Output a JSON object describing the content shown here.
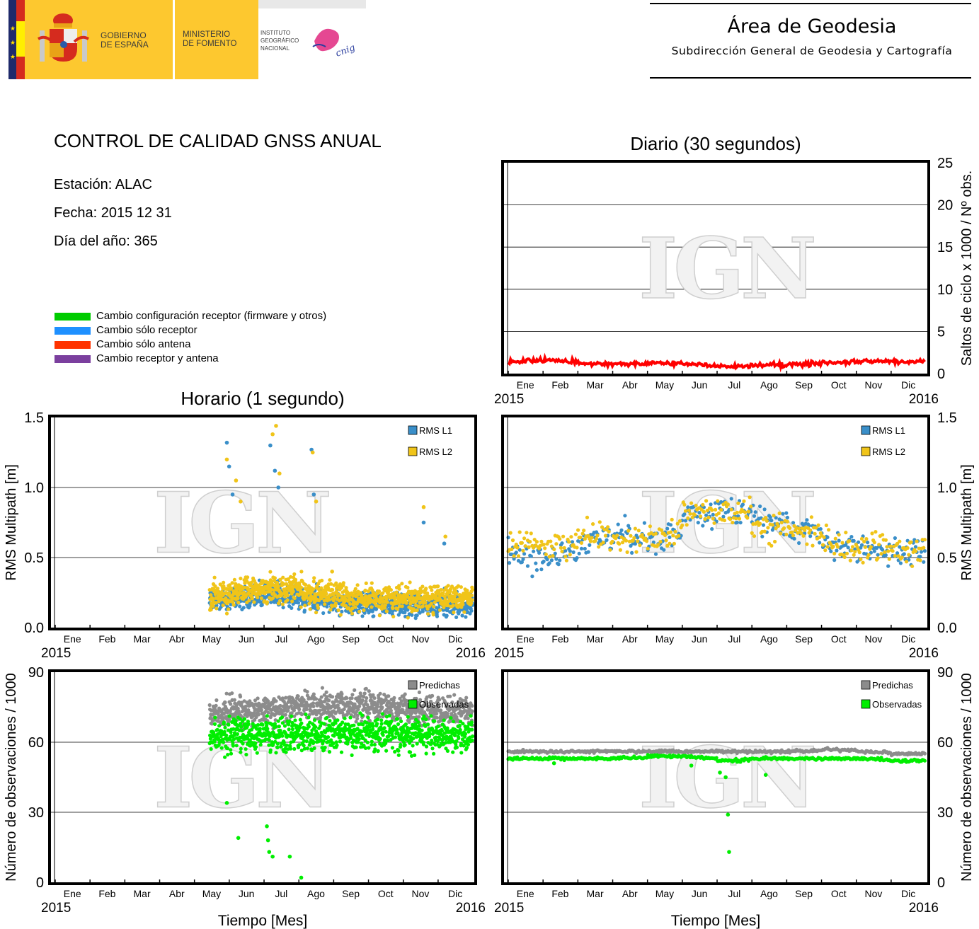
{
  "header": {
    "logo_gobierno": "GOBIERNO DE ESPAÑA",
    "logo_ministerio": "MINISTERIO DE FOMENTO",
    "logo_instituto": "INSTITUTO GEOGRÁFICO NACIONAL",
    "logo_cnig": "cnig",
    "area_title": "Área de Geodesia",
    "area_subtitle": "Subdirección General de Geodesia y Cartografía"
  },
  "report": {
    "title": "CONTROL DE CALIDAD GNSS ANUAL",
    "station": "Estación: ALAC",
    "date": "Fecha: 2015 12 31",
    "doy": "Día del año: 365"
  },
  "legend": [
    {
      "label": "Cambio configuración receptor (firmware y otros)",
      "color": "#00cc00"
    },
    {
      "label": "Cambio sólo receptor",
      "color": "#1e90ff"
    },
    {
      "label": "Cambio sólo antena",
      "color": "#ff3300"
    },
    {
      "label": "Cambio receptor y antena",
      "color": "#7b3f9e"
    }
  ],
  "titles": {
    "daily": "Diario (30 segundos)",
    "hourly": "Horario (1 segundo)",
    "xlabel_left": "Tiempo [Mes]",
    "xlabel_right": "Tiempo [Mes]"
  },
  "watermark": "IGN",
  "chart_data": [
    {
      "id": "daily-cycle-slips",
      "type": "line",
      "title": "Diario (30 segundos)",
      "ylabel": "Saltos de ciclo x 1000 / Nº obs.",
      "ylim": [
        0,
        25
      ],
      "yticks": [
        "0",
        "5",
        "10",
        "15",
        "20",
        "25"
      ],
      "ytick_values": [
        0,
        5,
        10,
        15,
        20,
        25
      ],
      "x_tick_labels": [
        "Ene",
        "Feb",
        "Mar",
        "Abr",
        "May",
        "Jun",
        "Jul",
        "Ago",
        "Sep",
        "Oct",
        "Nov",
        "Dic"
      ],
      "x_start": "2015",
      "x_end": "2016",
      "grid": true,
      "series": [
        {
          "name": "Saltos de ciclo",
          "color": "#ff0000",
          "start_day": 0,
          "monthly_mean": [
            1.5,
            1.6,
            1.2,
            1.1,
            1.3,
            1.1,
            0.8,
            1.0,
            1.1,
            1.3,
            1.5,
            1.4
          ],
          "spread": 0.25
        }
      ]
    },
    {
      "id": "hourly-rms",
      "type": "scatter",
      "ylabel": "RMS Multipath [m]",
      "ylim": [
        0,
        1.5
      ],
      "yticks": [
        "0.0",
        "0.5",
        "1.0",
        "1.5"
      ],
      "ytick_values": [
        0,
        0.5,
        1.0,
        1.5
      ],
      "x_tick_labels": [
        "Ene",
        "Feb",
        "Mar",
        "Abr",
        "May",
        "Jun",
        "Jul",
        "Ago",
        "Sep",
        "Oct",
        "Nov",
        "Dic"
      ],
      "x_start": "2015",
      "x_end": "2016",
      "legend_position": "top-right",
      "grid": true,
      "series": [
        {
          "name": "RMS L1",
          "color": "#3a8fc9",
          "start_day": 135,
          "monthly_mean": [
            null,
            null,
            null,
            null,
            0.18,
            0.22,
            0.25,
            0.2,
            0.18,
            0.17,
            0.16,
            0.17
          ],
          "spread": 0.08,
          "outliers": [
            [
              150,
              1.32
            ],
            [
              152,
              1.15
            ],
            [
              155,
              0.95
            ],
            [
              188,
              1.3
            ],
            [
              192,
              1.12
            ],
            [
              195,
              1.0
            ],
            [
              224,
              1.27
            ],
            [
              226,
              0.95
            ],
            [
              322,
              0.75
            ],
            [
              340,
              0.6
            ]
          ]
        },
        {
          "name": "RMS L2",
          "color": "#f0c419",
          "start_day": 135,
          "monthly_mean": [
            null,
            null,
            null,
            null,
            0.22,
            0.26,
            0.3,
            0.25,
            0.22,
            0.21,
            0.2,
            0.21
          ],
          "spread": 0.1,
          "outliers": [
            [
              150,
              1.2
            ],
            [
              158,
              1.05
            ],
            [
              162,
              0.9
            ],
            [
              190,
              1.38
            ],
            [
              193,
              1.44
            ],
            [
              196,
              1.1
            ],
            [
              225,
              1.25
            ],
            [
              228,
              0.9
            ],
            [
              242,
              0.4
            ],
            [
              322,
              0.86
            ],
            [
              341,
              0.65
            ]
          ]
        }
      ]
    },
    {
      "id": "daily-rms",
      "type": "scatter",
      "ylabel": "RMS Multipath [m]",
      "ylim": [
        0,
        1.5
      ],
      "yticks": [
        "0.0",
        "0.5",
        "1.0",
        "1.5"
      ],
      "ytick_values": [
        0,
        0.5,
        1.0,
        1.5
      ],
      "x_tick_labels": [
        "Ene",
        "Feb",
        "Mar",
        "Abr",
        "May",
        "Jun",
        "Jul",
        "Ago",
        "Sep",
        "Oct",
        "Nov",
        "Dic"
      ],
      "x_start": "2015",
      "x_end": "2016",
      "legend_position": "top-right",
      "grid": true,
      "series": [
        {
          "name": "RMS L1",
          "color": "#3a8fc9",
          "start_day": 0,
          "monthly_mean": [
            0.52,
            0.47,
            0.6,
            0.68,
            0.6,
            0.78,
            0.85,
            0.78,
            0.72,
            0.62,
            0.55,
            0.56
          ],
          "spread": 0.1
        },
        {
          "name": "RMS L2",
          "color": "#f0c419",
          "start_day": 0,
          "monthly_mean": [
            0.6,
            0.56,
            0.66,
            0.65,
            0.6,
            0.82,
            0.88,
            0.72,
            0.7,
            0.62,
            0.55,
            0.55
          ],
          "spread": 0.1
        }
      ]
    },
    {
      "id": "hourly-observations",
      "type": "scatter",
      "ylabel": "Número de observaciones / 1000",
      "ylim": [
        0,
        90
      ],
      "yticks": [
        "0",
        "30",
        "60",
        "90"
      ],
      "ytick_values": [
        0,
        30,
        60,
        90
      ],
      "x_tick_labels": [
        "Ene",
        "Feb",
        "Mar",
        "Abr",
        "May",
        "Jun",
        "Jul",
        "Ago",
        "Sep",
        "Oct",
        "Nov",
        "Dic"
      ],
      "x_start": "2015",
      "x_end": "2016",
      "legend_position": "top-right",
      "grid": true,
      "series": [
        {
          "name": "Predichas",
          "color": "#8c8c8c",
          "start_day": 135,
          "monthly_mean": [
            null,
            null,
            null,
            null,
            72,
            73,
            74,
            75,
            76,
            75,
            74,
            73
          ],
          "spread": 6
        },
        {
          "name": "Observadas",
          "color": "#00ee00",
          "start_day": 135,
          "monthly_mean": [
            null,
            null,
            null,
            null,
            62,
            63,
            63,
            63,
            64,
            64,
            63,
            63
          ],
          "spread": 7,
          "outliers": [
            [
              150,
              34
            ],
            [
              160,
              19
            ],
            [
              185,
              24
            ],
            [
              186,
              18
            ],
            [
              187,
              13
            ],
            [
              190,
              11
            ],
            [
              205,
              11
            ],
            [
              215,
              2
            ]
          ]
        }
      ]
    },
    {
      "id": "daily-observations",
      "type": "scatter",
      "ylabel": "Número de observaciones / 1000",
      "ylim": [
        0,
        90
      ],
      "yticks": [
        "0",
        "30",
        "60",
        "90"
      ],
      "ytick_values": [
        0,
        30,
        60,
        90
      ],
      "x_tick_labels": [
        "Ene",
        "Feb",
        "Mar",
        "Abr",
        "May",
        "Jun",
        "Jul",
        "Ago",
        "Sep",
        "Oct",
        "Nov",
        "Dic"
      ],
      "x_start": "2015",
      "x_end": "2016",
      "legend_position": "top-right",
      "grid": true,
      "series": [
        {
          "name": "Predichas",
          "color": "#8c8c8c",
          "start_day": 0,
          "monthly_mean": [
            56,
            56,
            56,
            56,
            56,
            56,
            56,
            56,
            56,
            57,
            56,
            55
          ],
          "spread": 0.6
        },
        {
          "name": "Observadas",
          "color": "#00ee00",
          "start_day": 0,
          "monthly_mean": [
            53,
            53,
            53,
            53,
            54,
            54,
            52,
            53,
            53,
            53,
            53,
            52
          ],
          "spread": 0.6,
          "outliers": [
            [
              40,
              51
            ],
            [
              160,
              50
            ],
            [
              185,
              47
            ],
            [
              190,
              45
            ],
            [
              192,
              29
            ],
            [
              193,
              13
            ],
            [
              225,
              46
            ]
          ]
        }
      ]
    }
  ]
}
